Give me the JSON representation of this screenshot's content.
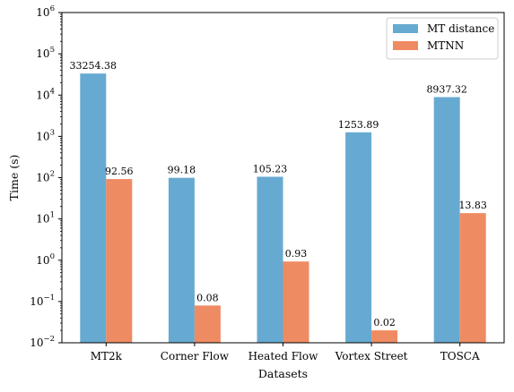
{
  "chart_data": {
    "type": "bar",
    "title": "",
    "xlabel": "Datasets",
    "ylabel": "Time (s)",
    "yscale": "log",
    "ylim": [
      0.01,
      1000000
    ],
    "yticks": [
      {
        "value": 0.01,
        "base": "10",
        "exp": "−2"
      },
      {
        "value": 0.1,
        "base": "10",
        "exp": "−1"
      },
      {
        "value": 1,
        "base": "10",
        "exp": "0"
      },
      {
        "value": 10,
        "base": "10",
        "exp": "1"
      },
      {
        "value": 100,
        "base": "10",
        "exp": "2"
      },
      {
        "value": 1000,
        "base": "10",
        "exp": "3"
      },
      {
        "value": 10000,
        "base": "10",
        "exp": "4"
      },
      {
        "value": 100000,
        "base": "10",
        "exp": "5"
      },
      {
        "value": 1000000,
        "base": "10",
        "exp": "6"
      }
    ],
    "categories": [
      "MT2k",
      "Corner Flow",
      "Heated Flow",
      "Vortex Street",
      "TOSCA"
    ],
    "series": [
      {
        "name": "MT distance",
        "color": "#67aad1",
        "values": [
          33254.38,
          99.18,
          105.23,
          1253.89,
          8937.32
        ],
        "labels": [
          "33254.38",
          "99.18",
          "105.23",
          "1253.89",
          "8937.32"
        ]
      },
      {
        "name": "MTNN",
        "color": "#ef8b62",
        "values": [
          92.56,
          0.08,
          0.93,
          0.02,
          13.83
        ],
        "labels": [
          "92.56",
          "0.08",
          "0.93",
          "0.02",
          "13.83"
        ]
      }
    ],
    "grid": false,
    "legend": "top-right"
  }
}
